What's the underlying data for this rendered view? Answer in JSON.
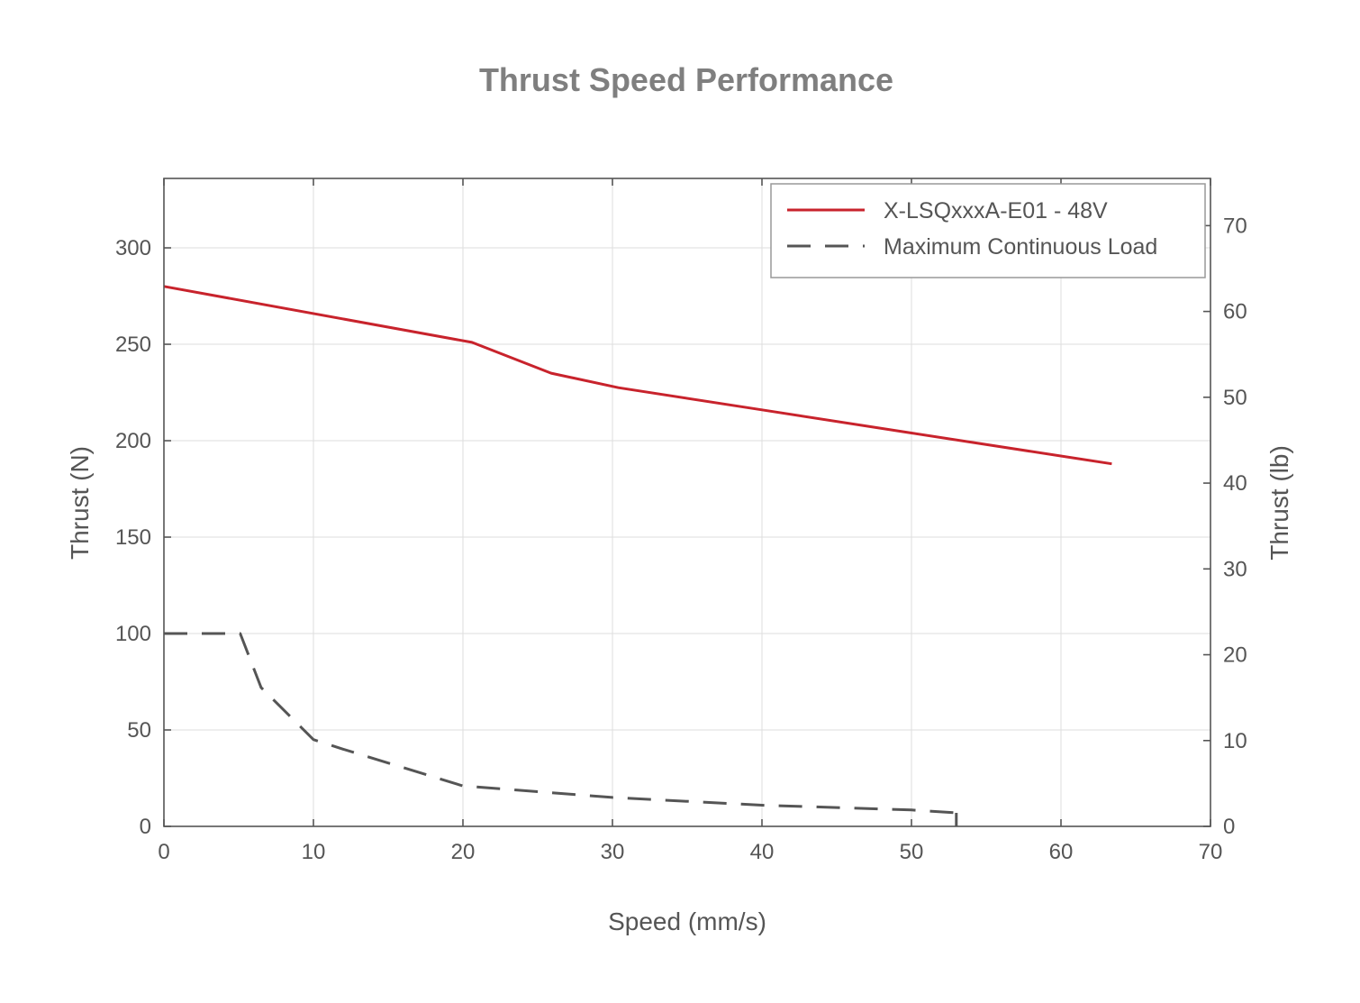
{
  "chart_data": {
    "type": "line",
    "title": "Thrust Speed Performance",
    "xlabel": "Speed (mm/s)",
    "ylabel": "Thrust (N)",
    "y2label": "Thrust (lb)",
    "xlim": [
      0,
      70
    ],
    "ylim": [
      0,
      336
    ],
    "y2lim": [
      0,
      75.5
    ],
    "xticks": [
      "0",
      "10",
      "20",
      "30",
      "40",
      "50",
      "60",
      "70"
    ],
    "yticks": [
      "0",
      "50",
      "100",
      "150",
      "200",
      "250",
      "300"
    ],
    "y2ticks": [
      "0",
      "10",
      "20",
      "30",
      "40",
      "50",
      "60",
      "70"
    ],
    "grid": true,
    "legend_position": "top-right",
    "series": [
      {
        "name": "X-LSQxxxA-E01 - 48V",
        "color": "#c8232c",
        "style": "solid",
        "x": [
          0,
          20.6,
          25.9,
          30.4,
          40,
          50,
          63.4
        ],
        "y": [
          280,
          251,
          235,
          227.5,
          216,
          204,
          188
        ]
      },
      {
        "name": "Maximum Continuous Load",
        "color": "#555555",
        "style": "dashed",
        "x": [
          0,
          5.1,
          6.5,
          10,
          12,
          20,
          30,
          40,
          50,
          53
        ],
        "y": [
          100,
          100,
          72,
          45,
          40,
          21,
          15,
          11,
          8.5,
          7
        ]
      }
    ]
  }
}
